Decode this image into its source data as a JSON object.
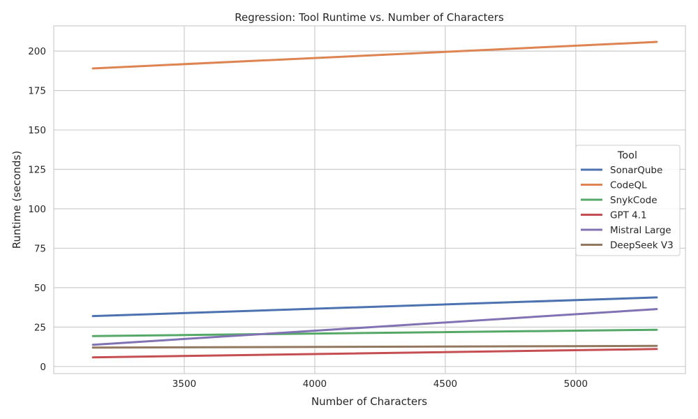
{
  "chart_data": {
    "type": "line",
    "title": "Regression: Tool Runtime vs. Number of Characters",
    "xlabel": "Number of Characters",
    "ylabel": "Runtime (seconds)",
    "xlim": [
      3000,
      5420
    ],
    "ylim": [
      -4.5,
      216
    ],
    "xticks": [
      3500,
      4000,
      4500,
      5000
    ],
    "yticks": [
      0,
      25,
      50,
      75,
      100,
      125,
      150,
      175,
      200
    ],
    "grid": true,
    "legend_title": "Tool",
    "legend_placement": "center-right",
    "series": [
      {
        "name": "SonarQube",
        "color": "#4c72b0",
        "x": [
          3150,
          5310
        ],
        "y": [
          32.0,
          43.8
        ]
      },
      {
        "name": "CodeQL",
        "color": "#dd8452",
        "x": [
          3150,
          5310
        ],
        "y": [
          189.0,
          205.8
        ]
      },
      {
        "name": "SnykCode",
        "color": "#55a868",
        "x": [
          3150,
          5310
        ],
        "y": [
          19.3,
          23.3
        ]
      },
      {
        "name": "GPT 4.1",
        "color": "#c44e52",
        "x": [
          3150,
          5310
        ],
        "y": [
          5.8,
          11.1
        ]
      },
      {
        "name": "Mistral Large",
        "color": "#8172b3",
        "x": [
          3150,
          5310
        ],
        "y": [
          13.8,
          36.4
        ]
      },
      {
        "name": "DeepSeek V3",
        "color": "#937860",
        "x": [
          3150,
          5310
        ],
        "y": [
          12.0,
          13.1
        ]
      }
    ]
  }
}
